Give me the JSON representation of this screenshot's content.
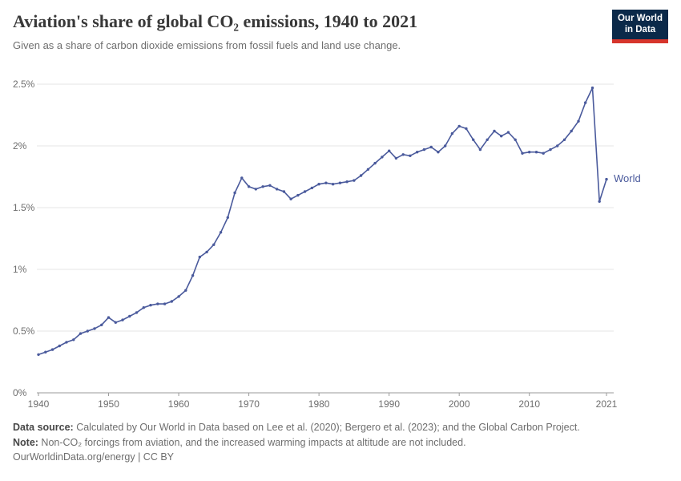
{
  "header": {
    "title": "Aviation's share of global CO₂ emissions, 1940 to 2021",
    "subtitle": "Given as a share of carbon dioxide emissions from fossil fuels and land use change.",
    "logo": {
      "line1": "Our World",
      "line2": "in Data",
      "bg_color": "#0b2949",
      "accent_color": "#d7352c"
    }
  },
  "chart_data": {
    "type": "line",
    "title": "Aviation's share of global CO₂ emissions, 1940 to 2021",
    "xlabel": "",
    "ylabel": "",
    "grid": true,
    "legend_position": "end-of-line",
    "ylim": [
      0,
      2.5
    ],
    "yticks": [
      0,
      0.5,
      1,
      1.5,
      2,
      2.5
    ],
    "ytick_labels": [
      "0%",
      "0.5%",
      "1%",
      "1.5%",
      "2%",
      "2.5%"
    ],
    "xticks": [
      1940,
      1950,
      1960,
      1970,
      1980,
      1990,
      2000,
      2010,
      2021
    ],
    "x": [
      1940,
      1941,
      1942,
      1943,
      1944,
      1945,
      1946,
      1947,
      1948,
      1949,
      1950,
      1951,
      1952,
      1953,
      1954,
      1955,
      1956,
      1957,
      1958,
      1959,
      1960,
      1961,
      1962,
      1963,
      1964,
      1965,
      1966,
      1967,
      1968,
      1969,
      1970,
      1971,
      1972,
      1973,
      1974,
      1975,
      1976,
      1977,
      1978,
      1979,
      1980,
      1981,
      1982,
      1983,
      1984,
      1985,
      1986,
      1987,
      1988,
      1989,
      1990,
      1991,
      1992,
      1993,
      1994,
      1995,
      1996,
      1997,
      1998,
      1999,
      2000,
      2001,
      2002,
      2003,
      2004,
      2005,
      2006,
      2007,
      2008,
      2009,
      2010,
      2011,
      2012,
      2013,
      2014,
      2015,
      2016,
      2017,
      2018,
      2019,
      2020,
      2021
    ],
    "series": [
      {
        "name": "World",
        "color": "#4a5a9c",
        "unit": "%",
        "values": [
          0.31,
          0.33,
          0.35,
          0.38,
          0.41,
          0.43,
          0.48,
          0.5,
          0.52,
          0.55,
          0.61,
          0.57,
          0.59,
          0.62,
          0.65,
          0.69,
          0.71,
          0.72,
          0.72,
          0.74,
          0.78,
          0.83,
          0.95,
          1.1,
          1.14,
          1.2,
          1.3,
          1.42,
          1.62,
          1.74,
          1.67,
          1.65,
          1.67,
          1.68,
          1.65,
          1.63,
          1.57,
          1.6,
          1.63,
          1.66,
          1.69,
          1.7,
          1.69,
          1.7,
          1.71,
          1.72,
          1.76,
          1.81,
          1.86,
          1.91,
          1.96,
          1.9,
          1.93,
          1.92,
          1.95,
          1.97,
          1.99,
          1.95,
          2.0,
          2.1,
          2.16,
          2.14,
          2.05,
          1.97,
          2.05,
          2.12,
          2.08,
          2.11,
          2.05,
          1.94,
          1.95,
          1.95,
          1.94,
          1.97,
          2.0,
          2.05,
          2.12,
          2.2,
          2.35,
          2.47,
          1.55,
          1.73
        ]
      }
    ]
  },
  "footer": {
    "source_label": "Data source:",
    "source_text": " Calculated by Our World in Data based on Lee et al. (2020); Bergero et al. (2023); and the Global Carbon Project.",
    "note_label": "Note:",
    "note_text": " Non-CO₂ forcings from aviation, and the increased warming impacts at altitude are not included.",
    "license": "OurWorldinData.org/energy | CC BY"
  }
}
